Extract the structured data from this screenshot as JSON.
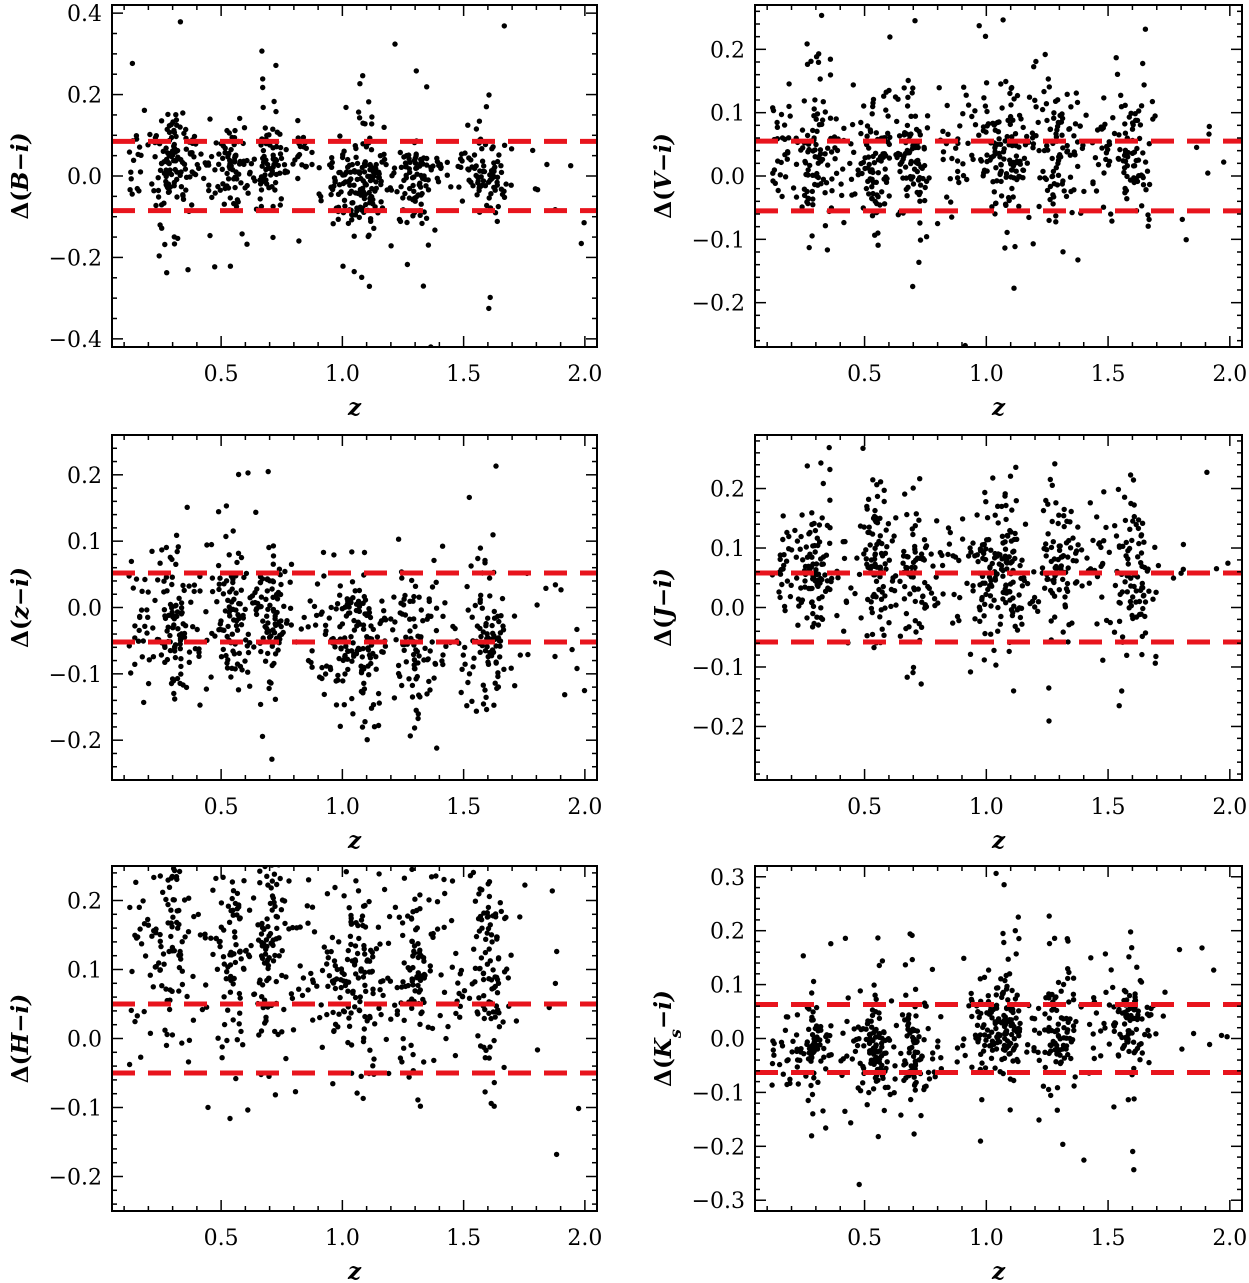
{
  "chart_data": [
    {
      "type": "scatter",
      "id": "B-i",
      "xlabel": "z",
      "ylabel": {
        "prefix": "Δ(",
        "band": "B",
        "sub": "",
        "suffix": "−i)"
      },
      "xlim": [
        0.05,
        2.05
      ],
      "ylim": [
        -0.42,
        0.42
      ],
      "xticks": [
        0.5,
        1.0,
        1.5,
        2.0
      ],
      "xtick_labels": [
        "0.5",
        "1.0",
        "1.5",
        "2.0"
      ],
      "yticks": [
        -0.4,
        -0.2,
        0.0,
        0.2,
        0.4
      ],
      "ytick_labels": [
        "−0.4",
        "−0.2",
        "0.0",
        "0.2",
        "0.4"
      ],
      "thresholds": [
        0.085,
        -0.085
      ],
      "points_summary": {
        "n": 700,
        "clusters": [
          [
            0.7,
            0.03
          ],
          [
            1.02,
            0.04
          ],
          [
            1.1,
            0.03
          ],
          [
            0.55,
            0.03
          ],
          [
            0.3,
            0.03
          ],
          [
            1.3,
            0.04
          ],
          [
            1.6,
            0.04
          ]
        ],
        "center": [
          0.03,
          -0.01
        ],
        "spread": 0.05,
        "outlier_spread": 0.16
      }
    },
    {
      "type": "scatter",
      "id": "V-i",
      "xlabel": "z",
      "ylabel": {
        "prefix": "Δ(",
        "band": "V",
        "sub": "",
        "suffix": "−i)"
      },
      "xlim": [
        0.05,
        2.05
      ],
      "ylim": [
        -0.27,
        0.27
      ],
      "xticks": [
        0.5,
        1.0,
        1.5,
        2.0
      ],
      "xtick_labels": [
        "0.5",
        "1.0",
        "1.5",
        "2.0"
      ],
      "yticks": [
        -0.2,
        -0.1,
        0.0,
        0.1,
        0.2
      ],
      "ytick_labels": [
        "−0.2",
        "−0.1",
        "0.0",
        "0.1",
        "0.2"
      ],
      "thresholds": [
        0.055,
        -0.055
      ],
      "points_summary": {
        "n": 700,
        "clusters": [
          [
            0.7,
            0.03
          ],
          [
            1.02,
            0.04
          ],
          [
            1.1,
            0.03
          ],
          [
            0.55,
            0.03
          ],
          [
            0.3,
            0.03
          ],
          [
            1.3,
            0.04
          ],
          [
            1.6,
            0.04
          ]
        ],
        "center": [
          0.03,
          0.04
        ],
        "spread": 0.05,
        "outlier_spread": 0.11
      }
    },
    {
      "type": "scatter",
      "id": "z-i",
      "xlabel": "z",
      "ylabel": {
        "prefix": "Δ(",
        "band": "z",
        "sub": "",
        "suffix": "−i)"
      },
      "xlim": [
        0.05,
        2.05
      ],
      "ylim": [
        -0.26,
        0.26
      ],
      "xticks": [
        0.5,
        1.0,
        1.5,
        2.0
      ],
      "xtick_labels": [
        "0.5",
        "1.0",
        "1.5",
        "2.0"
      ],
      "yticks": [
        -0.2,
        -0.1,
        0.0,
        0.1,
        0.2
      ],
      "ytick_labels": [
        "−0.2",
        "−0.1",
        "0.0",
        "0.1",
        "0.2"
      ],
      "thresholds": [
        0.052,
        -0.052
      ],
      "points_summary": {
        "n": 700,
        "clusters": [
          [
            0.7,
            0.03
          ],
          [
            1.02,
            0.04
          ],
          [
            1.1,
            0.03
          ],
          [
            0.55,
            0.03
          ],
          [
            0.3,
            0.03
          ],
          [
            1.3,
            0.04
          ],
          [
            1.6,
            0.04
          ]
        ],
        "center": [
          -0.02,
          -0.05
        ],
        "spread": 0.05,
        "outlier_spread": 0.1
      }
    },
    {
      "type": "scatter",
      "id": "J-i",
      "xlabel": "z",
      "ylabel": {
        "prefix": "Δ(",
        "band": "J",
        "sub": "",
        "suffix": "−i)"
      },
      "xlim": [
        0.05,
        2.05
      ],
      "ylim": [
        -0.29,
        0.29
      ],
      "xticks": [
        0.5,
        1.0,
        1.5,
        2.0
      ],
      "xtick_labels": [
        "0.5",
        "1.0",
        "1.5",
        "2.0"
      ],
      "yticks": [
        -0.2,
        -0.1,
        0.0,
        0.1,
        0.2
      ],
      "ytick_labels": [
        "−0.2",
        "−0.1",
        "0.0",
        "0.1",
        "0.2"
      ],
      "thresholds": [
        0.058,
        -0.058
      ],
      "points_summary": {
        "n": 700,
        "clusters": [
          [
            0.7,
            0.03
          ],
          [
            1.02,
            0.04
          ],
          [
            1.1,
            0.03
          ],
          [
            0.55,
            0.03
          ],
          [
            0.3,
            0.03
          ],
          [
            1.3,
            0.04
          ],
          [
            1.6,
            0.04
          ]
        ],
        "center": [
          0.06,
          0.06
        ],
        "spread": 0.06,
        "outlier_spread": 0.12
      }
    },
    {
      "type": "scatter",
      "id": "H-i",
      "xlabel": "z",
      "ylabel": {
        "prefix": "Δ(",
        "band": "H",
        "sub": "",
        "suffix": "−i)"
      },
      "xlim": [
        0.05,
        2.05
      ],
      "ylim": [
        -0.25,
        0.25
      ],
      "xticks": [
        0.5,
        1.0,
        1.5,
        2.0
      ],
      "xtick_labels": [
        "0.5",
        "1.0",
        "1.5",
        "2.0"
      ],
      "yticks": [
        -0.2,
        -0.1,
        0.0,
        0.1,
        0.2
      ],
      "ytick_labels": [
        "−0.2",
        "−0.1",
        "0.0",
        "0.1",
        "0.2"
      ],
      "thresholds": [
        0.05,
        -0.05
      ],
      "points_summary": {
        "n": 700,
        "clusters": [
          [
            0.7,
            0.03
          ],
          [
            1.02,
            0.04
          ],
          [
            1.1,
            0.03
          ],
          [
            0.55,
            0.03
          ],
          [
            0.3,
            0.03
          ],
          [
            1.3,
            0.04
          ],
          [
            1.6,
            0.04
          ]
        ],
        "center": [
          0.13,
          0.1
        ],
        "spread": 0.07,
        "outlier_spread": 0.12
      }
    },
    {
      "type": "scatter",
      "id": "Ks-i",
      "xlabel": "z",
      "ylabel": {
        "prefix": "Δ(",
        "band": "K",
        "sub": "s",
        "suffix": "−i)"
      },
      "xlim": [
        0.05,
        2.05
      ],
      "ylim": [
        -0.32,
        0.32
      ],
      "xticks": [
        0.5,
        1.0,
        1.5,
        2.0
      ],
      "xtick_labels": [
        "0.5",
        "1.0",
        "1.5",
        "2.0"
      ],
      "yticks": [
        -0.3,
        -0.2,
        -0.1,
        0.0,
        0.1,
        0.2,
        0.3
      ],
      "ytick_labels": [
        "−0.3",
        "−0.2",
        "−0.1",
        "0.0",
        "0.1",
        "0.2",
        "0.3"
      ],
      "thresholds": [
        0.063,
        -0.063
      ],
      "points_summary": {
        "n": 700,
        "clusters": [
          [
            0.7,
            0.03
          ],
          [
            1.02,
            0.04
          ],
          [
            1.1,
            0.03
          ],
          [
            0.55,
            0.03
          ],
          [
            0.3,
            0.03
          ],
          [
            1.3,
            0.04
          ],
          [
            1.6,
            0.04
          ]
        ],
        "center": [
          -0.02,
          0.02
        ],
        "spread": 0.04,
        "outlier_spread": 0.13
      }
    }
  ]
}
